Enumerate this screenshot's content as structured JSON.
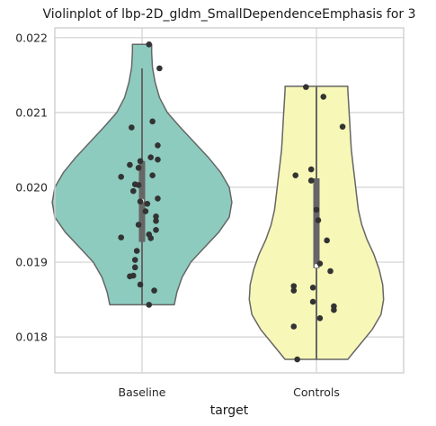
{
  "chart_data": {
    "type": "violin",
    "title": "Violinplot of lbp-2D_gldm_SmallDependenceEmphasis for 3",
    "xlabel": "target",
    "ylabel": "",
    "categories": [
      "Baseline",
      "Controls"
    ],
    "ylim": [
      0.01752,
      0.02213
    ],
    "yticks": [
      0.018,
      0.019,
      0.02,
      0.021,
      0.022
    ],
    "ytick_labels": [
      "0.018",
      "0.019",
      "0.020",
      "0.021",
      "0.022"
    ],
    "grid": true,
    "colors": {
      "Baseline": "#8dcbbf",
      "Controls": "#f7f7b8",
      "outline": "#666666",
      "points": "#333333",
      "grid": "#d0d0d0",
      "box": "#666666"
    },
    "violins": [
      {
        "name": "Baseline",
        "y_min": 0.01843,
        "y_max": 0.02191,
        "box": {
          "q1": 0.01927,
          "median": 0.01982,
          "q3": 0.02035,
          "whisker_low": 0.01843,
          "whisker_high": 0.02159
        },
        "profile": [
          [
            0.01843,
            0.185
          ],
          [
            0.0186,
            0.2
          ],
          [
            0.0188,
            0.23
          ],
          [
            0.019,
            0.28
          ],
          [
            0.0192,
            0.36
          ],
          [
            0.0194,
            0.44
          ],
          [
            0.0196,
            0.5
          ],
          [
            0.0198,
            0.515
          ],
          [
            0.02,
            0.5
          ],
          [
            0.0202,
            0.45
          ],
          [
            0.0204,
            0.38
          ],
          [
            0.0206,
            0.3
          ],
          [
            0.0208,
            0.22
          ],
          [
            0.021,
            0.145
          ],
          [
            0.0212,
            0.1
          ],
          [
            0.0214,
            0.075
          ],
          [
            0.0216,
            0.06
          ],
          [
            0.0218,
            0.055
          ],
          [
            0.02191,
            0.055
          ]
        ],
        "points": [
          [
            0.02191,
            0.04
          ],
          [
            0.02159,
            0.1
          ],
          [
            0.0208,
            -0.06
          ],
          [
            0.02088,
            0.06
          ],
          [
            0.02056,
            0.09
          ],
          [
            0.02037,
            0.09
          ],
          [
            0.02035,
            -0.01
          ],
          [
            0.0204,
            0.05
          ],
          [
            0.0203,
            -0.07
          ],
          [
            0.02026,
            -0.02
          ],
          [
            0.02014,
            -0.12
          ],
          [
            0.02016,
            0.06
          ],
          [
            0.02004,
            -0.04
          ],
          [
            0.02003,
            -0.02
          ],
          [
            0.01995,
            -0.05
          ],
          [
            0.01985,
            0.09
          ],
          [
            0.01981,
            -0.01
          ],
          [
            0.01978,
            0.03
          ],
          [
            0.01968,
            0.02
          ],
          [
            0.01961,
            0.08
          ],
          [
            0.01955,
            0.08
          ],
          [
            0.0195,
            -0.02
          ],
          [
            0.01943,
            0.08
          ],
          [
            0.01937,
            0.04
          ],
          [
            0.01933,
            -0.12
          ],
          [
            0.01932,
            0.05
          ],
          [
            0.01915,
            -0.03
          ],
          [
            0.01903,
            -0.04
          ],
          [
            0.01893,
            -0.04
          ],
          [
            0.01882,
            -0.05
          ],
          [
            0.01881,
            -0.07
          ],
          [
            0.0187,
            -0.01
          ],
          [
            0.01862,
            0.07
          ],
          [
            0.01843,
            0.04
          ]
        ]
      },
      {
        "name": "Controls",
        "y_min": 0.0177,
        "y_max": 0.02135,
        "box": {
          "q1": 0.01892,
          "median": 0.01895,
          "q3": 0.02012,
          "whisker_low": 0.0177,
          "whisker_high": 0.02134
        },
        "profile": [
          [
            0.0177,
            0.18
          ],
          [
            0.0179,
            0.25
          ],
          [
            0.0181,
            0.32
          ],
          [
            0.0183,
            0.37
          ],
          [
            0.0185,
            0.385
          ],
          [
            0.0187,
            0.38
          ],
          [
            0.0189,
            0.36
          ],
          [
            0.0191,
            0.33
          ],
          [
            0.0193,
            0.29
          ],
          [
            0.0195,
            0.26
          ],
          [
            0.0197,
            0.24
          ],
          [
            0.0199,
            0.23
          ],
          [
            0.0201,
            0.22
          ],
          [
            0.0203,
            0.21
          ],
          [
            0.0205,
            0.2
          ],
          [
            0.0207,
            0.195
          ],
          [
            0.0209,
            0.19
          ],
          [
            0.0211,
            0.185
          ],
          [
            0.0213,
            0.18
          ],
          [
            0.02135,
            0.18
          ]
        ],
        "points": [
          [
            0.02134,
            -0.06
          ],
          [
            0.02121,
            0.04
          ],
          [
            0.02081,
            0.15
          ],
          [
            0.02024,
            -0.03
          ],
          [
            0.02016,
            -0.12
          ],
          [
            0.02009,
            -0.03
          ],
          [
            0.0197,
            0.0
          ],
          [
            0.01956,
            0.01
          ],
          [
            0.01929,
            0.06
          ],
          [
            0.01898,
            0.02
          ],
          [
            0.01888,
            0.08
          ],
          [
            0.01868,
            -0.13
          ],
          [
            0.01866,
            -0.02
          ],
          [
            0.01862,
            -0.13
          ],
          [
            0.01847,
            -0.02
          ],
          [
            0.01841,
            0.1
          ],
          [
            0.01836,
            0.1
          ],
          [
            0.01825,
            0.02
          ],
          [
            0.01814,
            -0.13
          ],
          [
            0.0177,
            -0.11
          ]
        ]
      }
    ]
  }
}
